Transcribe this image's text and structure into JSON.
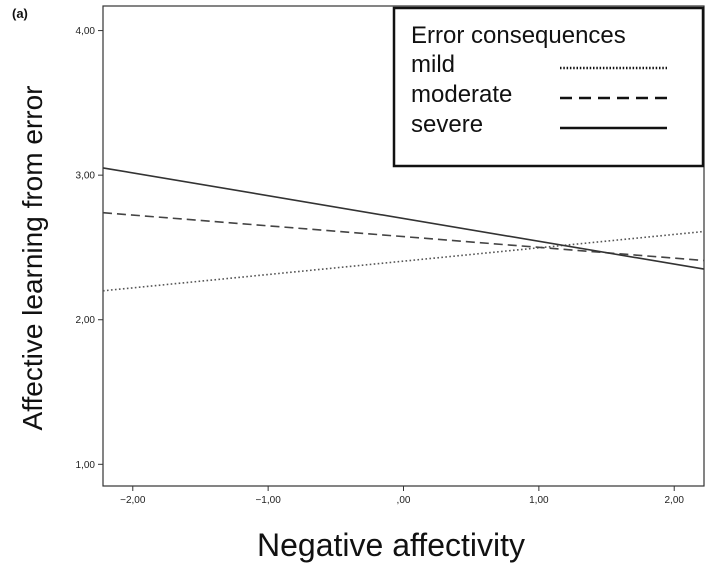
{
  "chart_data": {
    "type": "line",
    "panel_label": "(a)",
    "xlabel": "Negative affectivity",
    "ylabel": "Affective learning from error",
    "xlim": [
      -2.22,
      2.22
    ],
    "ylim": [
      0.85,
      4.17
    ],
    "x_ticks": [
      -2,
      -1,
      0,
      1,
      2
    ],
    "x_tick_labels": [
      "−2,00",
      "−1,00",
      ",00",
      "1,00",
      "2,00"
    ],
    "y_ticks": [
      1,
      2,
      3,
      4
    ],
    "y_tick_labels": [
      "1,00",
      "2,00",
      "3,00",
      "4,00"
    ],
    "grid": false,
    "legend": {
      "title": "Error consequences",
      "placement": "top-right"
    },
    "series": [
      {
        "name": "mild",
        "style": "dotted",
        "color": "#555555",
        "x": [
          -2.22,
          2.22
        ],
        "y": [
          2.2,
          2.61
        ]
      },
      {
        "name": "moderate",
        "style": "dashed",
        "color": "#444444",
        "x": [
          -2.22,
          2.22
        ],
        "y": [
          2.74,
          2.41
        ]
      },
      {
        "name": "severe",
        "style": "solid",
        "color": "#333333",
        "x": [
          -2.22,
          2.22
        ],
        "y": [
          3.05,
          2.35
        ]
      }
    ]
  }
}
